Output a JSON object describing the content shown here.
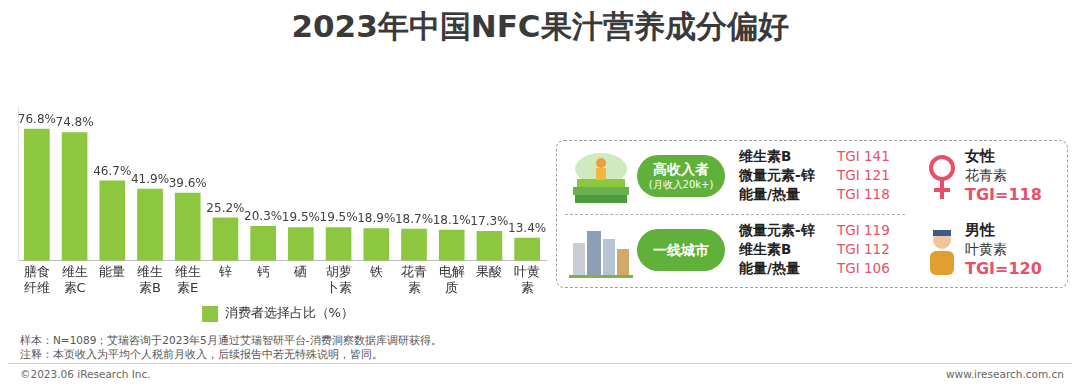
{
  "chart_data": {
    "type": "bar",
    "title": "2023年中国NFC果汁营养成分偏好",
    "categories": [
      "膳食纤维",
      "维生素C",
      "能量",
      "维生素B",
      "维生素E",
      "锌",
      "钙",
      "硒",
      "胡萝卜素",
      "铁",
      "花青素",
      "电解质",
      "果酸",
      "叶黄素"
    ],
    "series": [
      {
        "name": "消费者选择占比（%）",
        "color": "#8dc63f",
        "values": [
          76.8,
          74.8,
          46.7,
          41.9,
          39.6,
          25.2,
          20.3,
          19.5,
          19.5,
          18.9,
          18.7,
          18.1,
          17.3,
          13.4
        ],
        "value_labels": [
          "76.8%",
          "74.8%",
          "46.7%",
          "41.9%",
          "39.6%",
          "25.2%",
          "20.3%",
          "19.5%",
          "19.5%",
          "18.9%",
          "18.7%",
          "18.1%",
          "17.3%",
          "13.4%"
        ]
      }
    ],
    "ylim": [
      0,
      90
    ],
    "grid": false,
    "data_labels": true,
    "tick_labels": "x",
    "legend": "bottom"
  },
  "tgi_panel": {
    "groups": [
      {
        "title": "高收入者",
        "subtitle": "(月收入20k+)",
        "rows": [
          {
            "item": "维生素B",
            "metric": "TGI",
            "value": 141
          },
          {
            "item": "微量元素-锌",
            "metric": "TGI",
            "value": 121
          },
          {
            "item": "能量/热量",
            "metric": "TGI",
            "value": 118
          }
        ]
      },
      {
        "title": "一线城市",
        "rows": [
          {
            "item": "微量元素-锌",
            "metric": "TGI",
            "value": 119
          },
          {
            "item": "维生素B",
            "metric": "TGI",
            "value": 112
          },
          {
            "item": "能量/热量",
            "metric": "TGI",
            "value": 106
          }
        ]
      }
    ],
    "gender": [
      {
        "title": "女性",
        "item": "花青素",
        "metric": "TGI=",
        "value": 118
      },
      {
        "title": "男性",
        "item": "叶黄素",
        "metric": "TGI=",
        "value": 120
      }
    ]
  },
  "notes": [
    "样本：N=1089；艾瑞咨询于2023年5月通过艾瑞智研平台-消费洞察数据库调研获得。",
    "注释：本页收入为平均个人税前月收入，后续报告中若无特殊说明，皆同。"
  ],
  "footer": {
    "left": "©2023.06 iResearch Inc.",
    "right": "www.iresearch.com.cn"
  }
}
